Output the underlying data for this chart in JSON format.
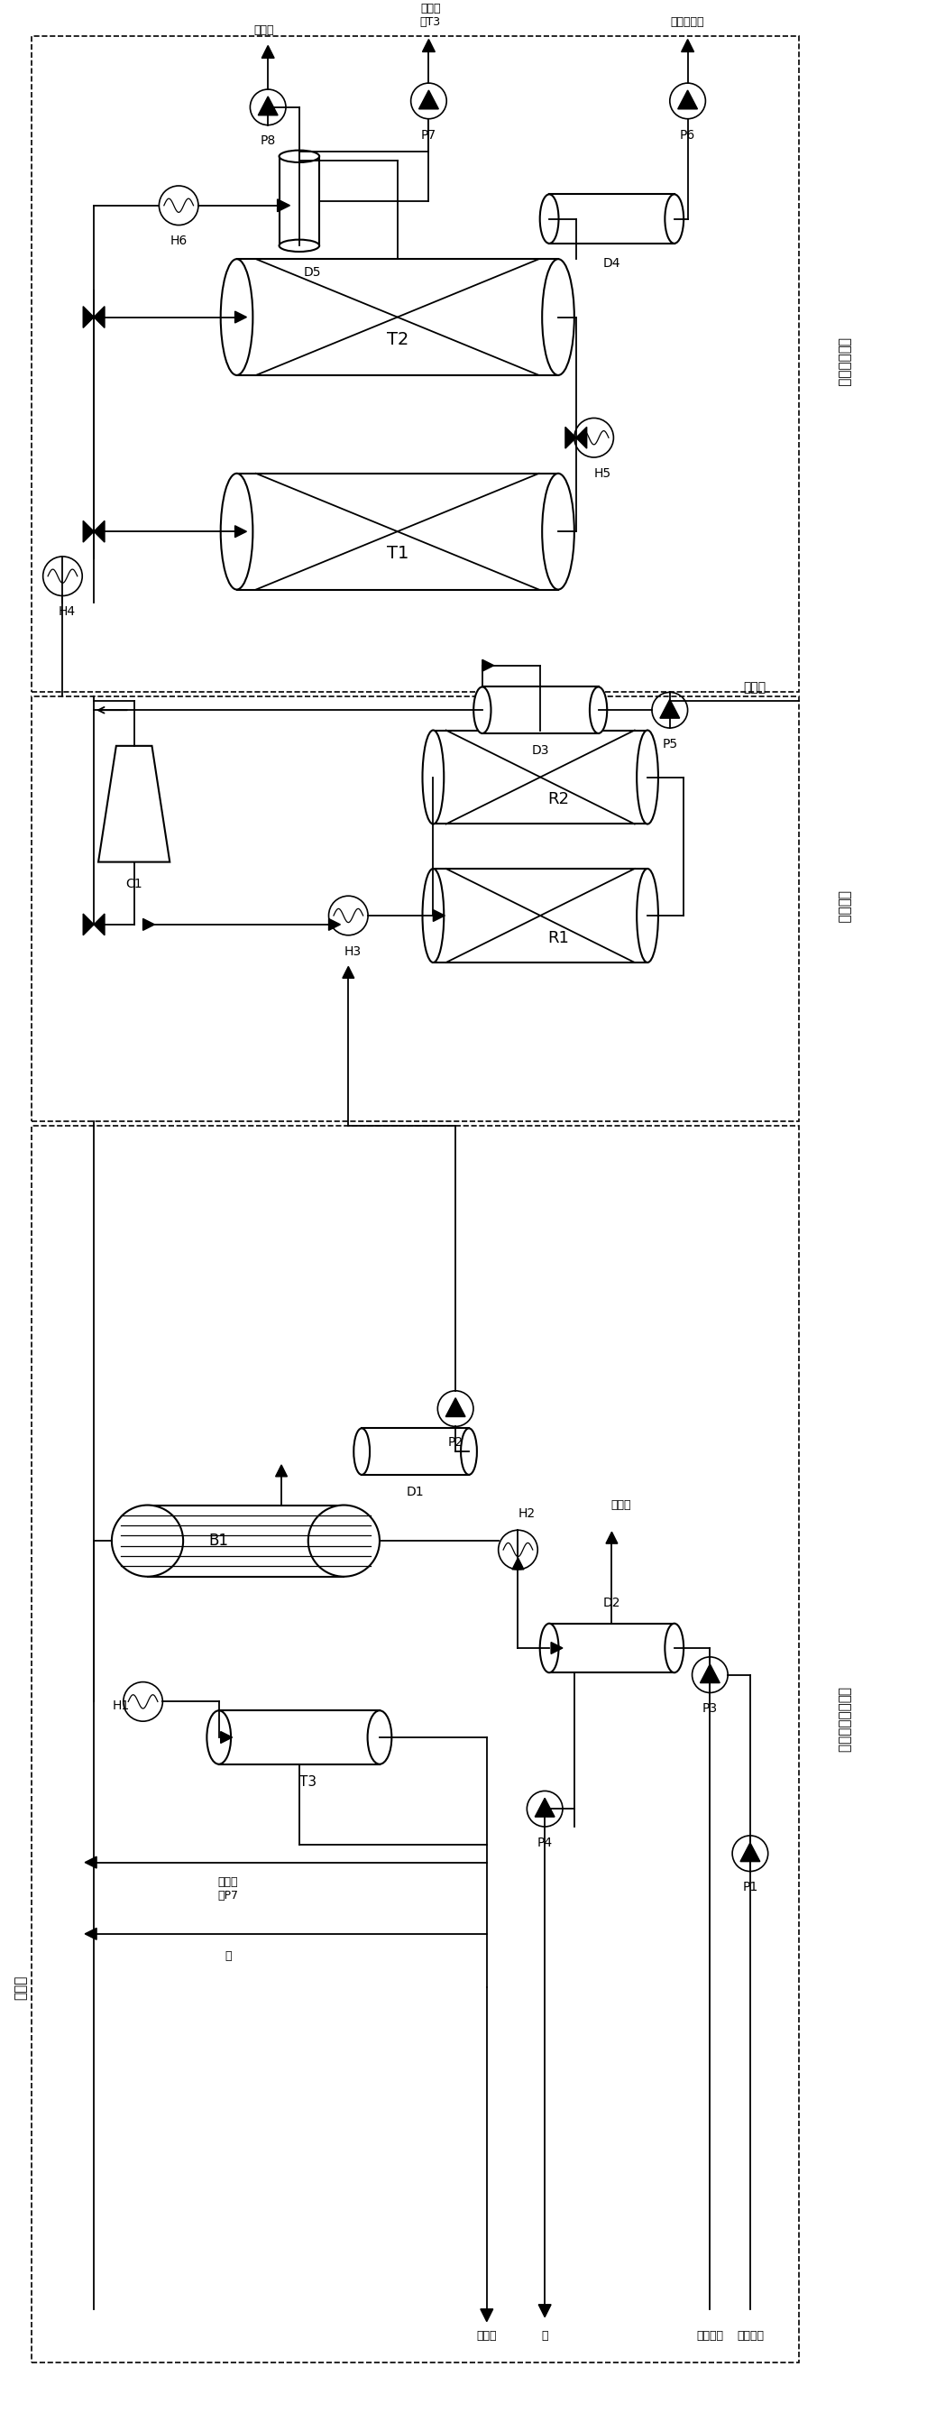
{
  "fig_width": 10.38,
  "fig_height": 26.75,
  "bg_color": "#ffffff",
  "line_color": "#000000",
  "section_labels": {
    "adsorption": "吸附脱水单元",
    "hydrogenation": "加氢单元",
    "pervaporation": "渗透汽化脱水单元",
    "fresh_h2_left": "新鲜氢"
  },
  "stream_labels": {
    "vent_air_top": "排空气",
    "regen_liquid_T3": "再生液\n去T3",
    "low_carbon_alcohol": "低碳混合醇",
    "regen_liquid_from_P7": "再生液\n自P7",
    "water": "水",
    "vent_air_bottom": "排空气",
    "raw_light_alcohol": "原料轻醇"
  }
}
